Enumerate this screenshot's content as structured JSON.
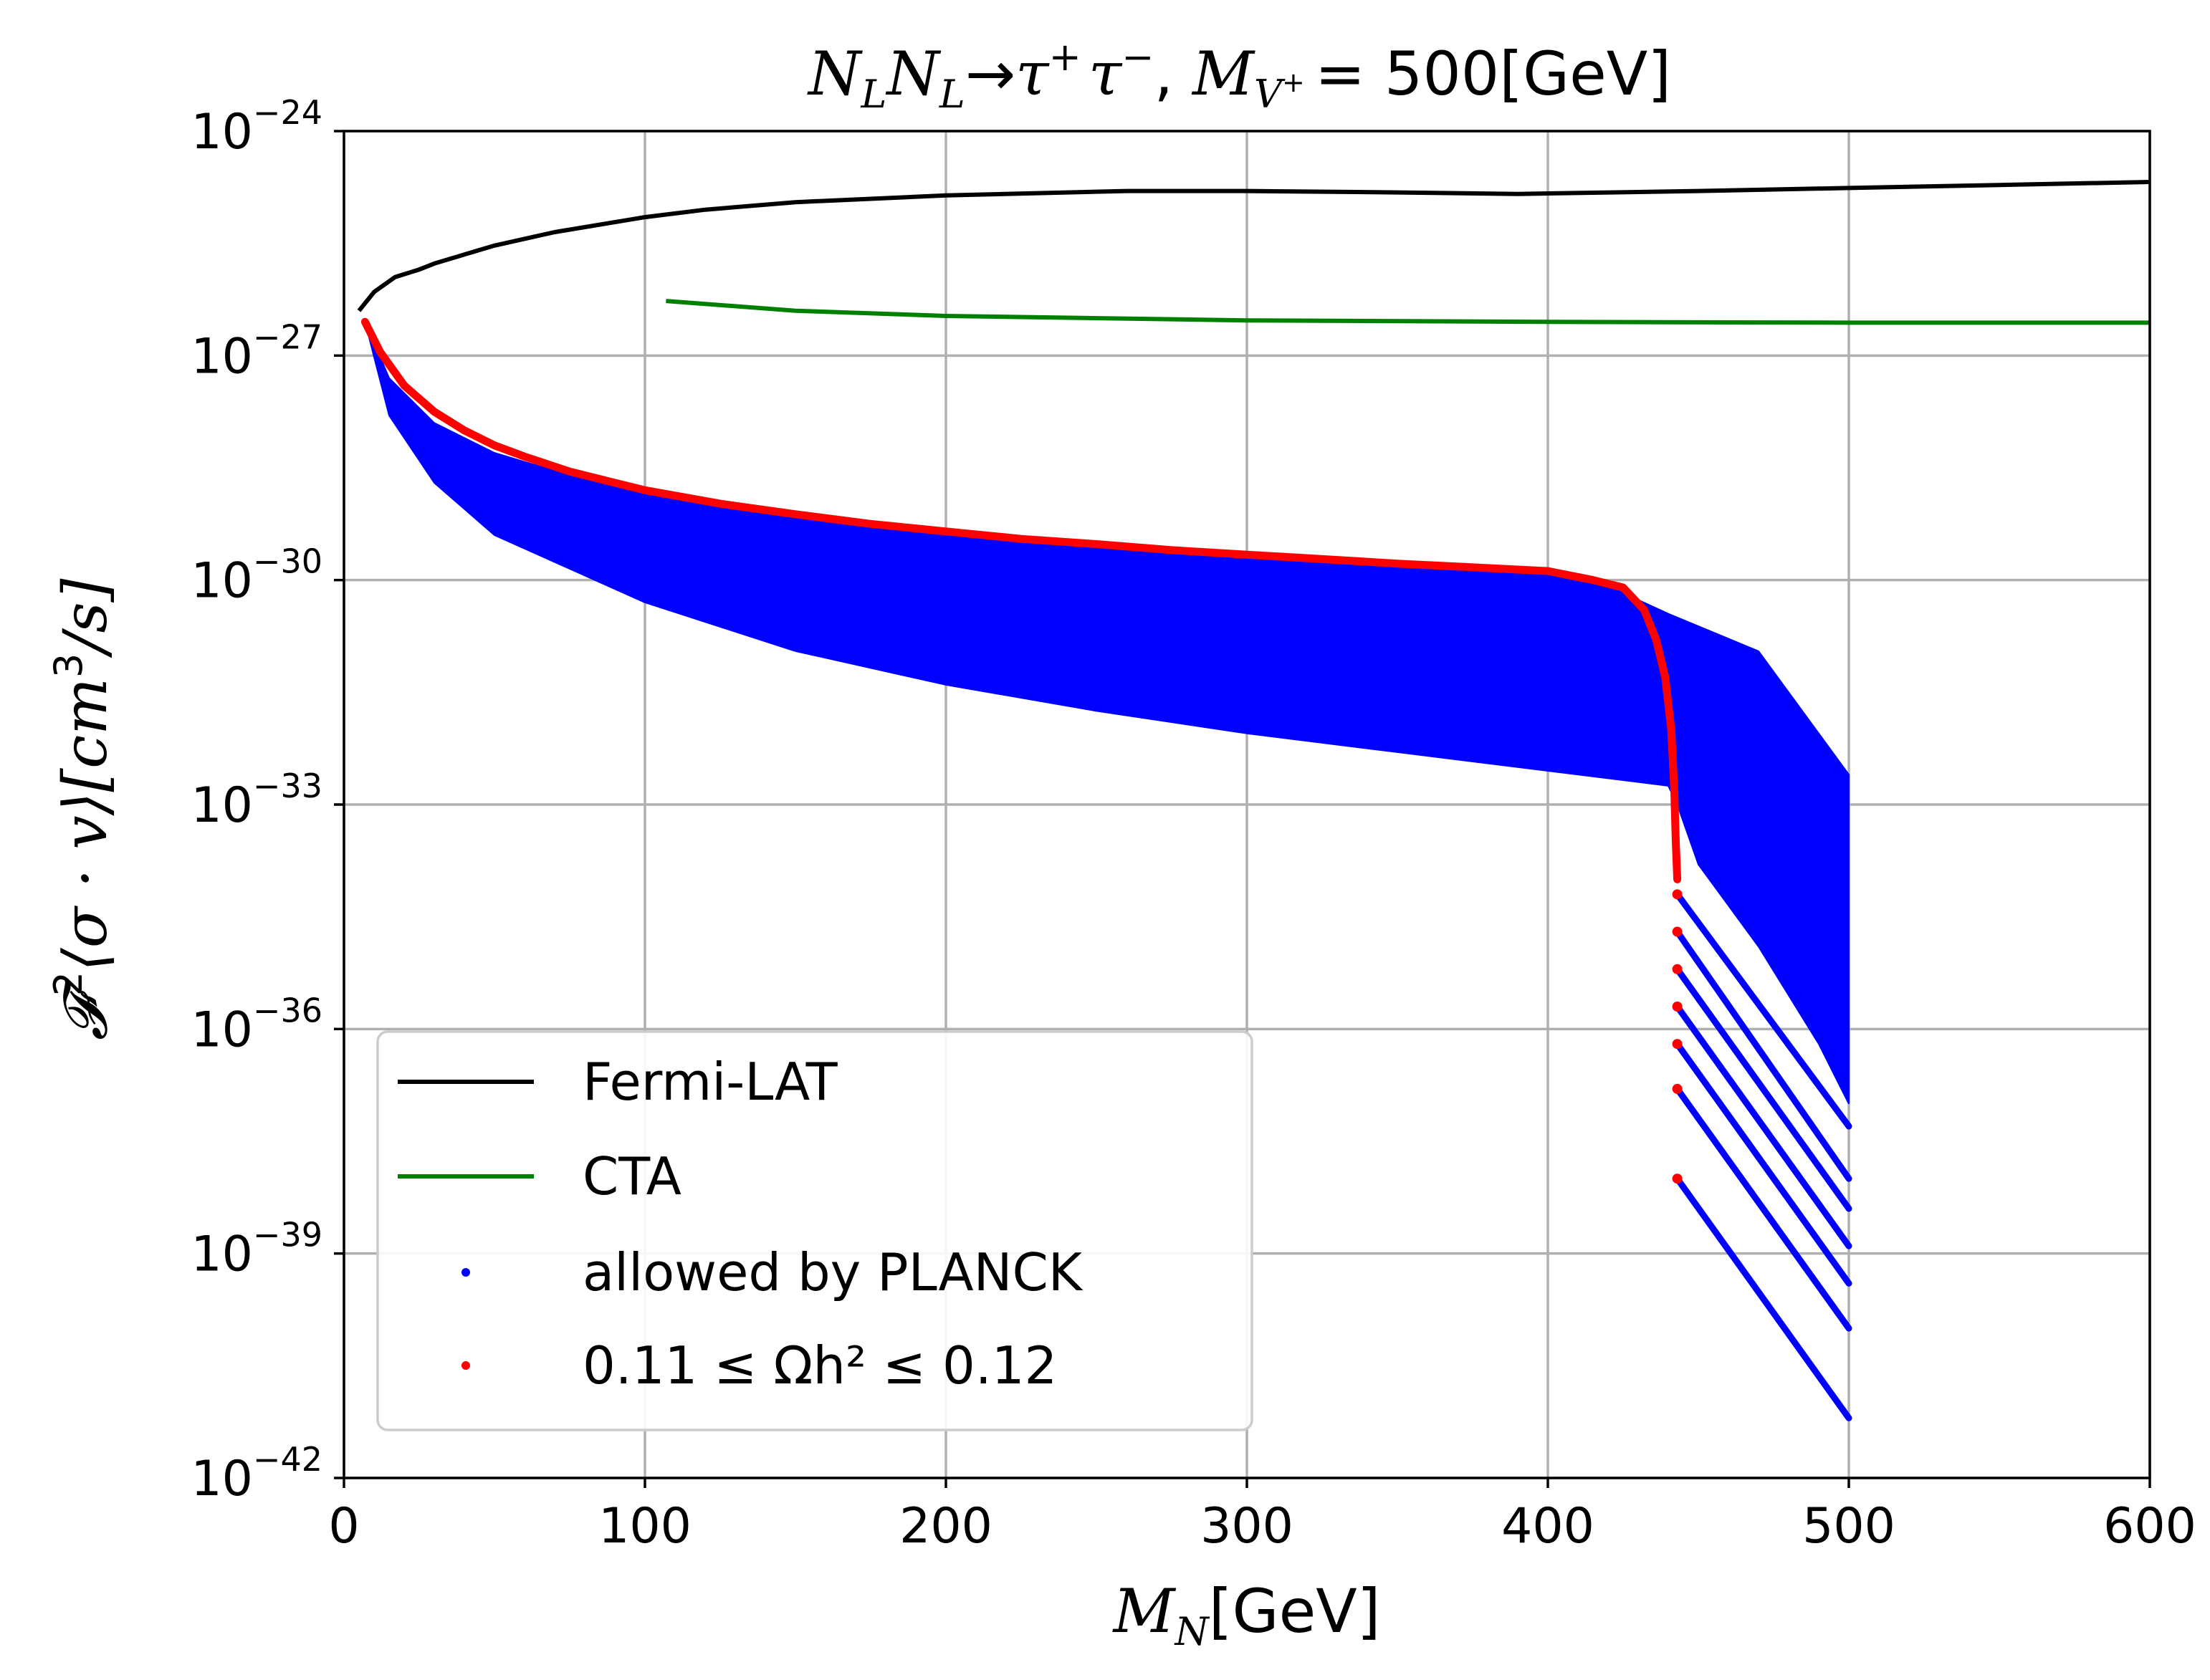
{
  "chart_data": {
    "type": "scatter",
    "title": {
      "lhs": "N",
      "lhs_sub": "L",
      "arrow": "→",
      "final_state": "τ",
      "final_sup_plus": "+",
      "final_sup_minus": "−",
      "mass_label": "M",
      "mass_sub": "V",
      "mass_sub_sup": "+",
      "mass_value": "= 500[GeV]"
    },
    "xlabel": {
      "symbol": "M",
      "sub": "N",
      "unit": "[GeV]"
    },
    "ylabel": {
      "prefix": "𝓕",
      "prefix_sup": "2",
      "body": "⟨σ · v⟩[cm",
      "unit_sup": "3",
      "tail": "/s]"
    },
    "x_range": [
      0,
      600
    ],
    "y_scale": "log",
    "y_range_exp": [
      -42,
      -24
    ],
    "x_ticks": [
      "0",
      "100",
      "200",
      "300",
      "400",
      "500",
      "600"
    ],
    "y_ticks": [
      {
        "base": "10",
        "exp": "−42",
        "value": -42
      },
      {
        "base": "10",
        "exp": "−39",
        "value": -39
      },
      {
        "base": "10",
        "exp": "−36",
        "value": -36
      },
      {
        "base": "10",
        "exp": "−33",
        "value": -33
      },
      {
        "base": "10",
        "exp": "−30",
        "value": -30
      },
      {
        "base": "10",
        "exp": "−27",
        "value": -27
      },
      {
        "base": "10",
        "exp": "−24",
        "value": -24
      }
    ],
    "grid": true,
    "legend_position": "lower-left",
    "legend": [
      {
        "label": "Fermi-LAT",
        "kind": "line",
        "color": "#000000"
      },
      {
        "label": "CTA",
        "kind": "line",
        "color": "#008000"
      },
      {
        "label": "allowed by PLANCK",
        "kind": "marker",
        "color": "#0000ff"
      },
      {
        "label": "0.11 ≤ Ωh² ≤ 0.12",
        "kind": "marker",
        "color": "#ff0000"
      }
    ],
    "series": [
      {
        "kind": "line",
        "color": "#000000",
        "points": [
          [
            5,
            -26.4
          ],
          [
            10,
            -26.15
          ],
          [
            17,
            -25.95
          ],
          [
            25,
            -25.85
          ],
          [
            30,
            -25.77
          ],
          [
            40,
            -25.65
          ],
          [
            50,
            -25.53
          ],
          [
            70,
            -25.35
          ],
          [
            100,
            -25.15
          ],
          [
            120,
            -25.05
          ],
          [
            150,
            -24.95
          ],
          [
            200,
            -24.86
          ],
          [
            260,
            -24.8
          ],
          [
            300,
            -24.8
          ],
          [
            350,
            -24.82
          ],
          [
            390,
            -24.84
          ],
          [
            450,
            -24.8
          ],
          [
            500,
            -24.76
          ],
          [
            550,
            -24.72
          ],
          [
            600,
            -24.68
          ]
        ]
      },
      {
        "kind": "line",
        "color": "#008000",
        "points": [
          [
            107,
            -26.27
          ],
          [
            150,
            -26.4
          ],
          [
            200,
            -26.47
          ],
          [
            300,
            -26.53
          ],
          [
            400,
            -26.55
          ],
          [
            500,
            -26.56
          ],
          [
            600,
            -26.56
          ]
        ]
      },
      {
        "kind": "band",
        "color": "#0000ff",
        "upper": [
          [
            7,
            -26.55
          ],
          [
            15,
            -27.3
          ],
          [
            30,
            -27.9
          ],
          [
            50,
            -28.3
          ],
          [
            75,
            -28.6
          ],
          [
            100,
            -28.85
          ],
          [
            150,
            -29.15
          ],
          [
            200,
            -29.37
          ],
          [
            250,
            -29.55
          ],
          [
            300,
            -29.7
          ],
          [
            350,
            -29.82
          ],
          [
            400,
            -29.92
          ],
          [
            420,
            -30.08
          ],
          [
            440,
            -30.45
          ],
          [
            470,
            -30.95
          ],
          [
            500,
            -32.6
          ]
        ],
        "lower": [
          [
            7,
            -26.55
          ],
          [
            15,
            -27.8
          ],
          [
            30,
            -28.7
          ],
          [
            50,
            -29.4
          ],
          [
            75,
            -29.85
          ],
          [
            100,
            -30.3
          ],
          [
            150,
            -30.95
          ],
          [
            200,
            -31.4
          ],
          [
            250,
            -31.75
          ],
          [
            300,
            -32.05
          ],
          [
            350,
            -32.3
          ],
          [
            400,
            -32.55
          ],
          [
            440,
            -32.75
          ],
          [
            443,
            -33.0
          ],
          [
            450,
            -33.8
          ],
          [
            470,
            -34.9
          ],
          [
            490,
            -36.2
          ],
          [
            500,
            -37.0
          ]
        ]
      },
      {
        "kind": "dotted_line",
        "color": "#0000ff",
        "lines": [
          [
            [
              443,
              -34.2
            ],
            [
              500,
              -37.3
            ]
          ],
          [
            [
              443,
              -34.7
            ],
            [
              500,
              -38.0
            ]
          ],
          [
            [
              443,
              -35.2
            ],
            [
              500,
              -38.4
            ]
          ],
          [
            [
              443,
              -35.7
            ],
            [
              500,
              -38.9
            ]
          ],
          [
            [
              443,
              -36.2
            ],
            [
              500,
              -39.4
            ]
          ],
          [
            [
              443,
              -36.8
            ],
            [
              500,
              -40.0
            ]
          ],
          [
            [
              443,
              -38.0
            ],
            [
              500,
              -41.2
            ]
          ]
        ]
      },
      {
        "kind": "dotted_line",
        "color": "#ff0000",
        "lines": [
          [
            [
              7,
              -26.55
            ],
            [
              12,
              -26.95
            ],
            [
              20,
              -27.4
            ],
            [
              30,
              -27.75
            ],
            [
              40,
              -28.0
            ],
            [
              50,
              -28.2
            ],
            [
              60,
              -28.35
            ],
            [
              75,
              -28.55
            ],
            [
              90,
              -28.7
            ],
            [
              100,
              -28.8
            ],
            [
              125,
              -28.98
            ],
            [
              150,
              -29.12
            ],
            [
              175,
              -29.25
            ],
            [
              200,
              -29.35
            ],
            [
              225,
              -29.45
            ],
            [
              250,
              -29.52
            ],
            [
              275,
              -29.6
            ],
            [
              300,
              -29.66
            ],
            [
              325,
              -29.72
            ],
            [
              350,
              -29.78
            ],
            [
              375,
              -29.83
            ],
            [
              400,
              -29.88
            ],
            [
              415,
              -30.0
            ],
            [
              425,
              -30.1
            ],
            [
              432,
              -30.4
            ],
            [
              436,
              -30.8
            ],
            [
              439,
              -31.3
            ],
            [
              441,
              -32.0
            ],
            [
              442,
              -32.8
            ],
            [
              442.5,
              -33.5
            ],
            [
              443,
              -34.0
            ]
          ]
        ]
      },
      {
        "kind": "scatter",
        "color": "#ff0000",
        "points": [
          [
            443,
            -34.2
          ],
          [
            443,
            -34.7
          ],
          [
            443,
            -35.2
          ],
          [
            443,
            -35.7
          ],
          [
            443,
            -36.2
          ],
          [
            443,
            -36.8
          ],
          [
            443,
            -38.0
          ]
        ]
      }
    ]
  }
}
